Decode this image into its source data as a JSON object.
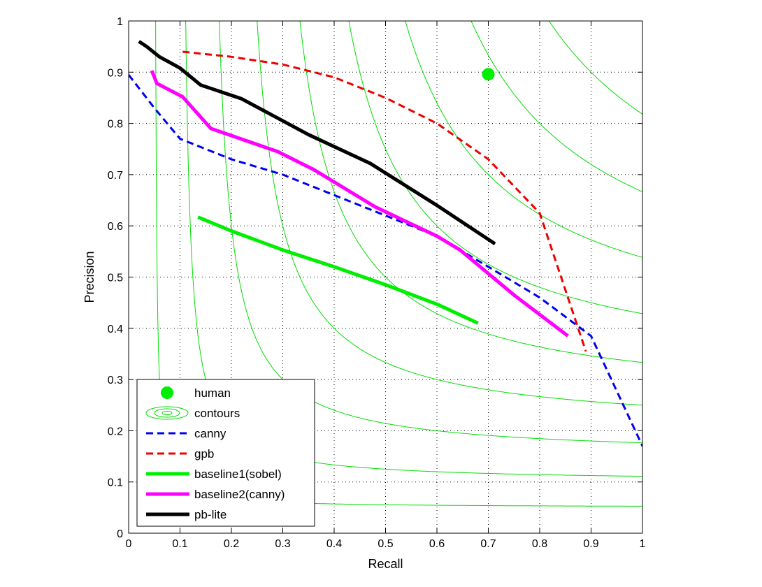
{
  "chart_data": {
    "type": "line",
    "title": "",
    "xlabel": "Recall",
    "ylabel": "Precision",
    "xlim": [
      0,
      1
    ],
    "ylim": [
      0,
      1
    ],
    "x_ticks": [
      "0",
      "0.1",
      "0.2",
      "0.3",
      "0.4",
      "0.5",
      "0.6",
      "0.7",
      "0.8",
      "0.9",
      "1"
    ],
    "y_ticks": [
      "0",
      "0.1",
      "0.2",
      "0.3",
      "0.4",
      "0.5",
      "0.6",
      "0.7",
      "0.8",
      "0.9",
      "1"
    ],
    "grid": "dotted",
    "legend_position": "bottom-left",
    "contour_levels": [
      0.1,
      0.2,
      0.3,
      0.4,
      0.5,
      0.6,
      0.7,
      0.8,
      0.9
    ],
    "human": {
      "name": "human",
      "x": 0.7,
      "y": 0.896,
      "color": "#00ee00"
    },
    "contours": {
      "name": "contours",
      "color": "#00dd00"
    },
    "series": [
      {
        "name": "canny",
        "color": "#0000ee",
        "style": "dashed",
        "points": [
          [
            0.0,
            0.895
          ],
          [
            0.05,
            0.83
          ],
          [
            0.1,
            0.77
          ],
          [
            0.2,
            0.73
          ],
          [
            0.3,
            0.7
          ],
          [
            0.4,
            0.66
          ],
          [
            0.5,
            0.62
          ],
          [
            0.6,
            0.58
          ],
          [
            0.7,
            0.52
          ],
          [
            0.8,
            0.46
          ],
          [
            0.9,
            0.385
          ],
          [
            1.0,
            0.17
          ]
        ]
      },
      {
        "name": "gpb",
        "color": "#ee0000",
        "style": "dashed",
        "points": [
          [
            0.105,
            0.94
          ],
          [
            0.2,
            0.93
          ],
          [
            0.3,
            0.915
          ],
          [
            0.4,
            0.89
          ],
          [
            0.5,
            0.85
          ],
          [
            0.6,
            0.8
          ],
          [
            0.7,
            0.73
          ],
          [
            0.8,
            0.625
          ],
          [
            0.89,
            0.355
          ]
        ]
      },
      {
        "name": "baseline1(sobel)",
        "color": "#00ee00",
        "style": "solid",
        "points": [
          [
            0.135,
            0.617
          ],
          [
            0.2,
            0.59
          ],
          [
            0.3,
            0.553
          ],
          [
            0.4,
            0.52
          ],
          [
            0.5,
            0.485
          ],
          [
            0.6,
            0.447
          ],
          [
            0.68,
            0.41
          ]
        ]
      },
      {
        "name": "baseline2(canny)",
        "color": "#ff00ff",
        "style": "solid",
        "points": [
          [
            0.045,
            0.903
          ],
          [
            0.055,
            0.878
          ],
          [
            0.105,
            0.852
          ],
          [
            0.16,
            0.79
          ],
          [
            0.29,
            0.745
          ],
          [
            0.36,
            0.71
          ],
          [
            0.48,
            0.637
          ],
          [
            0.6,
            0.58
          ],
          [
            0.645,
            0.553
          ],
          [
            0.75,
            0.465
          ],
          [
            0.855,
            0.385
          ]
        ]
      },
      {
        "name": "pb-lite",
        "color": "#000000",
        "style": "solid",
        "points": [
          [
            0.02,
            0.96
          ],
          [
            0.035,
            0.95
          ],
          [
            0.06,
            0.93
          ],
          [
            0.1,
            0.908
          ],
          [
            0.14,
            0.875
          ],
          [
            0.22,
            0.848
          ],
          [
            0.35,
            0.778
          ],
          [
            0.47,
            0.722
          ],
          [
            0.6,
            0.64
          ],
          [
            0.713,
            0.565
          ]
        ]
      }
    ]
  }
}
